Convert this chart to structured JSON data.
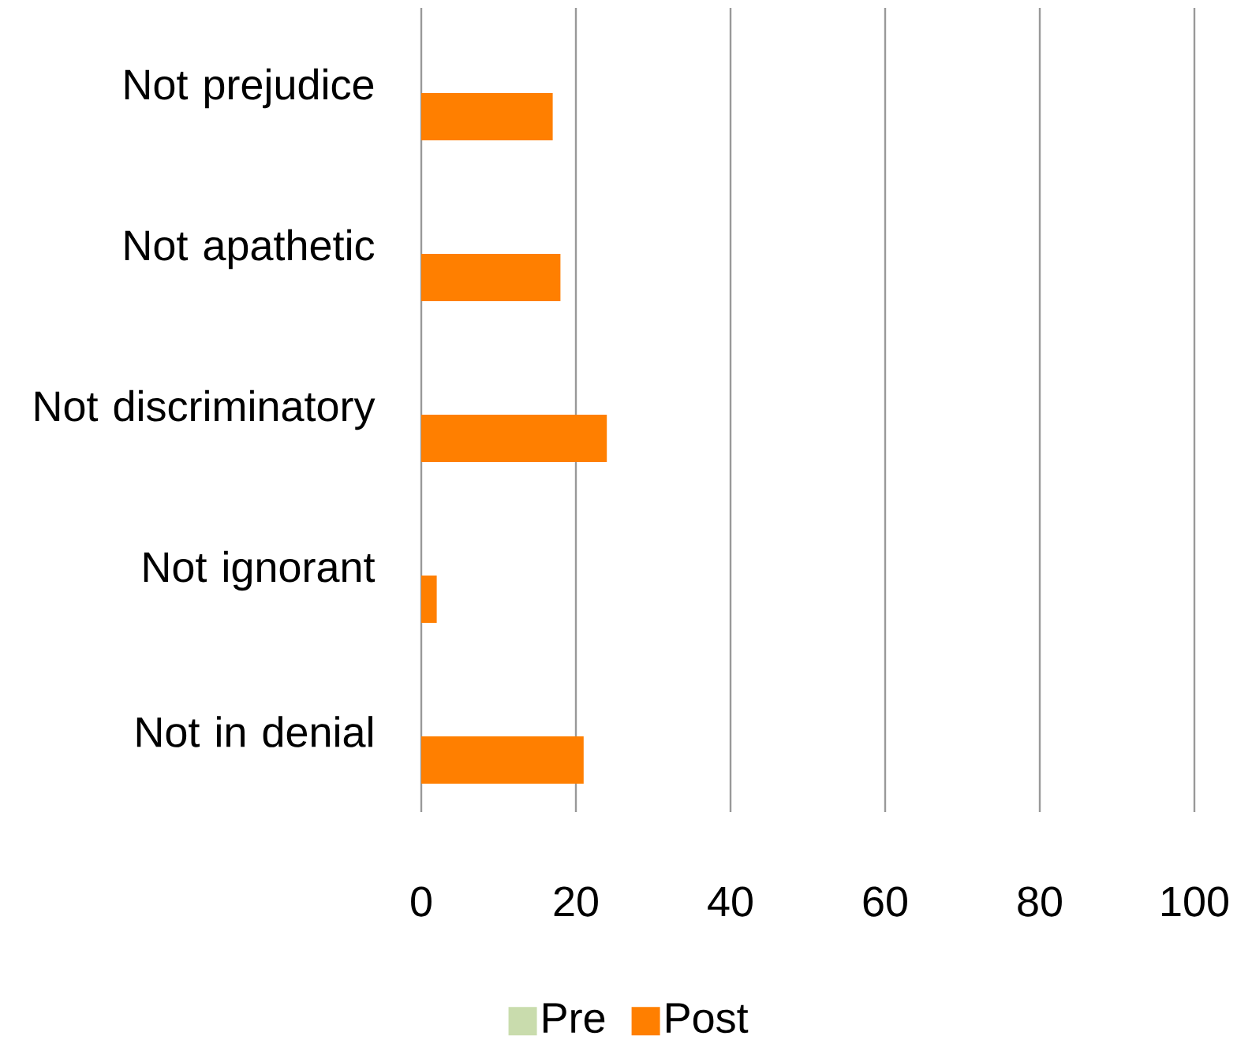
{
  "chart_data": {
    "type": "bar",
    "orientation": "horizontal",
    "categories": [
      "Not prejudice",
      "Not apathetic",
      "Not discriminatory",
      "Not ignorant",
      "Not in denial"
    ],
    "series": [
      {
        "name": "Pre",
        "color": "#c9dcad",
        "values": [
          0,
          0,
          0,
          0,
          0
        ]
      },
      {
        "name": "Post",
        "color": "#ff7f00",
        "values": [
          17,
          18,
          24,
          2,
          21
        ]
      }
    ],
    "xlim": [
      0,
      100
    ],
    "xticks": [
      0,
      20,
      40,
      60,
      80,
      100
    ],
    "grid": "x",
    "legend": "bottom"
  }
}
